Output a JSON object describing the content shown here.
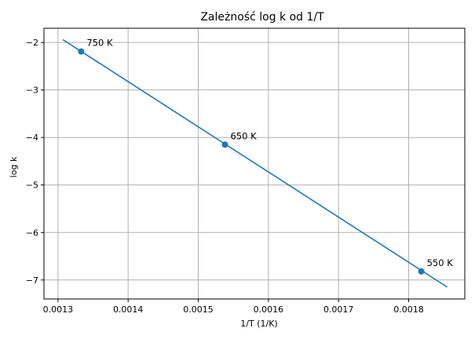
{
  "chart_data": {
    "type": "line",
    "title": "Zależność log k od 1/T",
    "xlabel": "1/T (1/K)",
    "ylabel": "log k",
    "xlim": [
      0.00128,
      0.00188
    ],
    "ylim": [
      -7.4,
      -1.7
    ],
    "grid": true,
    "xticks": [
      0.0013,
      0.0014,
      0.0015,
      0.0016,
      0.0017,
      0.0018
    ],
    "xtick_labels": [
      "0.0013",
      "0.0014",
      "0.0015",
      "0.0016",
      "0.0017",
      "0.0018"
    ],
    "yticks": [
      -2,
      -3,
      -4,
      -5,
      -6,
      -7
    ],
    "ytick_labels": [
      "−2",
      "−3",
      "−4",
      "−5",
      "−6",
      "−7"
    ],
    "series": [
      {
        "type": "line",
        "color": "#1f77b4",
        "x": [
          0.001307,
          0.001855
        ],
        "y": [
          -1.94,
          -7.15
        ]
      },
      {
        "type": "scatter",
        "color": "#1f77b4",
        "x": [
          0.001333,
          0.001538,
          0.001818
        ],
        "y": [
          -2.19,
          -4.15,
          -6.82
        ],
        "labels": [
          "750 K",
          "650 K",
          "550 K"
        ]
      }
    ]
  }
}
